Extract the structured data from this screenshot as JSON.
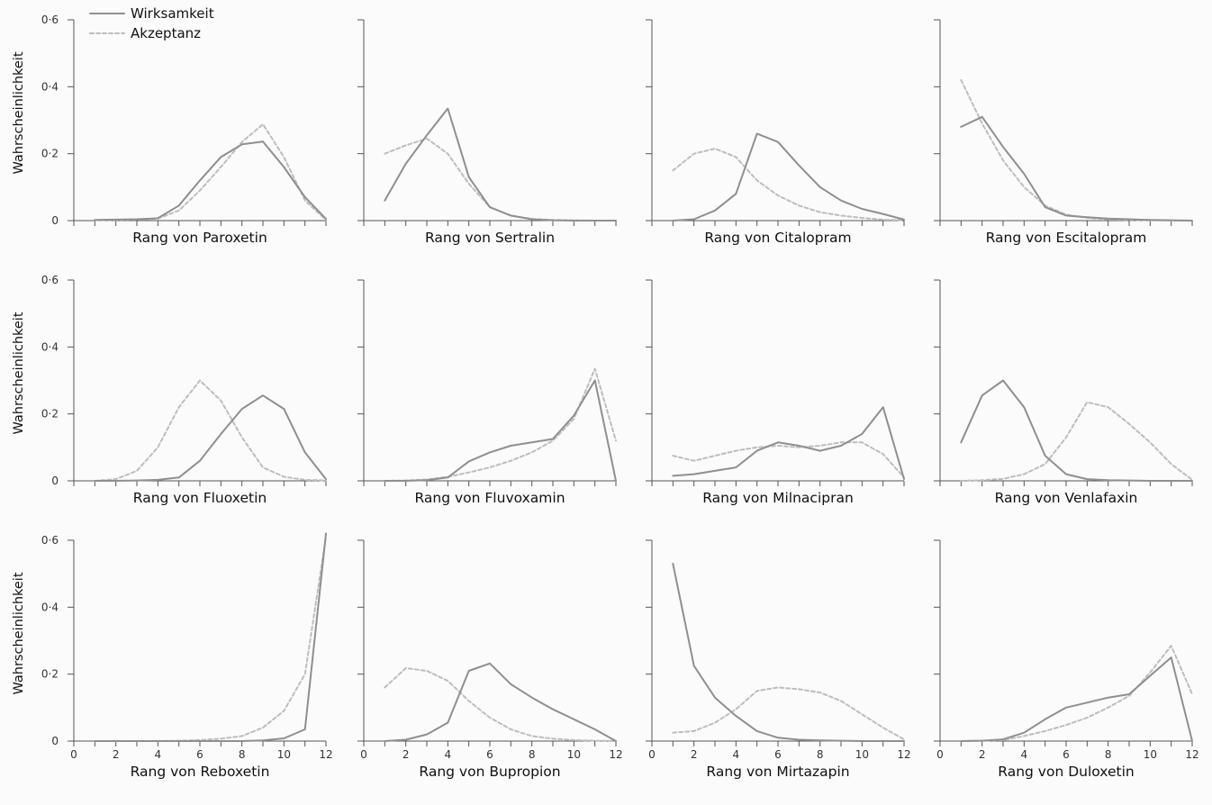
{
  "legend": {
    "items": [
      {
        "label": "Wirksamkeit",
        "style": "solid",
        "color": "#8f8f8f"
      },
      {
        "label": "Akzeptanz",
        "style": "dashed",
        "color": "#bdbdbd"
      }
    ]
  },
  "chart_data": {
    "type": "line",
    "ylabel": "Wahrscheinlichkeit",
    "xlim": [
      0,
      12
    ],
    "ylim": [
      0,
      0.6
    ],
    "xticks": [
      0,
      2,
      4,
      6,
      8,
      10,
      12
    ],
    "yticks": [
      {
        "value": 0,
        "label": "0"
      },
      {
        "value": 0.2,
        "label": "0·2"
      },
      {
        "value": 0.4,
        "label": "0·4"
      },
      {
        "value": 0.6,
        "label": "0·6"
      }
    ],
    "grid": false,
    "legend_position": "top-left",
    "series_names": [
      "Wirksamkeit",
      "Akzeptanz"
    ],
    "x": [
      1,
      2,
      3,
      4,
      5,
      6,
      7,
      8,
      9,
      10,
      11,
      12
    ],
    "panels": [
      {
        "xlabel": "Rang von Paroxetin",
        "efficacy": [
          0.002,
          0.003,
          0.004,
          0.007,
          0.045,
          0.12,
          0.19,
          0.228,
          0.236,
          0.16,
          0.07,
          0.005
        ],
        "acceptability": [
          0.001,
          0.002,
          0.003,
          0.006,
          0.03,
          0.09,
          0.16,
          0.235,
          0.288,
          0.19,
          0.06,
          0.002
        ]
      },
      {
        "xlabel": "Rang von Sertralin",
        "efficacy": [
          0.06,
          0.17,
          0.255,
          0.335,
          0.13,
          0.04,
          0.015,
          0.004,
          0.001,
          0.0,
          0.0,
          0.0
        ],
        "acceptability": [
          0.2,
          0.225,
          0.245,
          0.2,
          0.11,
          0.04,
          0.015,
          0.005,
          0.002,
          0.001,
          0.0,
          0.0
        ]
      },
      {
        "xlabel": "Rang von Citalopram",
        "efficacy": [
          0.0,
          0.004,
          0.03,
          0.08,
          0.26,
          0.235,
          0.165,
          0.1,
          0.06,
          0.035,
          0.02,
          0.003
        ],
        "acceptability": [
          0.15,
          0.2,
          0.215,
          0.19,
          0.12,
          0.075,
          0.045,
          0.025,
          0.015,
          0.008,
          0.003,
          0.001
        ]
      },
      {
        "xlabel": "Rang von Escitalopram",
        "efficacy": [
          0.28,
          0.31,
          0.22,
          0.14,
          0.04,
          0.015,
          0.01,
          0.006,
          0.004,
          0.002,
          0.001,
          0.0
        ],
        "acceptability": [
          0.42,
          0.29,
          0.18,
          0.1,
          0.045,
          0.018,
          0.008,
          0.004,
          0.002,
          0.001,
          0.0,
          0.0
        ]
      },
      {
        "xlabel": "Rang von Fluoxetin",
        "efficacy": [
          0.0,
          0.0,
          0.001,
          0.003,
          0.01,
          0.06,
          0.14,
          0.215,
          0.255,
          0.215,
          0.085,
          0.005
        ],
        "acceptability": [
          0.0,
          0.005,
          0.03,
          0.1,
          0.22,
          0.3,
          0.24,
          0.13,
          0.04,
          0.012,
          0.003,
          0.001
        ]
      },
      {
        "xlabel": "Rang von Fluvoxamin",
        "efficacy": [
          0.0,
          0.0,
          0.002,
          0.01,
          0.058,
          0.085,
          0.105,
          0.115,
          0.125,
          0.195,
          0.3,
          0.0
        ],
        "acceptability": [
          0.0,
          0.001,
          0.004,
          0.012,
          0.025,
          0.04,
          0.06,
          0.085,
          0.12,
          0.185,
          0.335,
          0.12
        ]
      },
      {
        "xlabel": "Rang von Milnacipran",
        "efficacy": [
          0.015,
          0.02,
          0.03,
          0.04,
          0.09,
          0.115,
          0.105,
          0.09,
          0.105,
          0.14,
          0.22,
          0.005
        ],
        "acceptability": [
          0.075,
          0.06,
          0.075,
          0.09,
          0.1,
          0.105,
          0.1,
          0.105,
          0.115,
          0.115,
          0.08,
          0.01
        ]
      },
      {
        "xlabel": "Rang von Venlafaxin",
        "efficacy": [
          0.115,
          0.255,
          0.3,
          0.22,
          0.075,
          0.02,
          0.005,
          0.002,
          0.001,
          0.0,
          0.0,
          0.0
        ],
        "acceptability": [
          0.0,
          0.002,
          0.006,
          0.02,
          0.05,
          0.13,
          0.235,
          0.22,
          0.17,
          0.115,
          0.05,
          0.003
        ]
      },
      {
        "xlabel": "Rang von Reboxetin",
        "efficacy": [
          0.0,
          0.0,
          0.0,
          0.0,
          0.0,
          0.0,
          0.0,
          0.0,
          0.002,
          0.008,
          0.035,
          0.62
        ],
        "acceptability": [
          0.0,
          0.0,
          0.0,
          0.0,
          0.001,
          0.003,
          0.007,
          0.015,
          0.04,
          0.09,
          0.2,
          0.61
        ]
      },
      {
        "xlabel": "Rang von Bupropion",
        "efficacy": [
          0.0,
          0.004,
          0.02,
          0.055,
          0.21,
          0.232,
          0.17,
          0.13,
          0.095,
          0.065,
          0.035,
          0.0
        ],
        "acceptability": [
          0.16,
          0.218,
          0.21,
          0.18,
          0.12,
          0.07,
          0.035,
          0.015,
          0.007,
          0.003,
          0.001,
          0.0
        ]
      },
      {
        "xlabel": "Rang von Mirtazapin",
        "efficacy": [
          0.53,
          0.225,
          0.13,
          0.075,
          0.03,
          0.01,
          0.004,
          0.002,
          0.001,
          0.0,
          0.0,
          0.0
        ],
        "acceptability": [
          0.025,
          0.03,
          0.055,
          0.095,
          0.15,
          0.16,
          0.155,
          0.145,
          0.12,
          0.08,
          0.04,
          0.005
        ]
      },
      {
        "xlabel": "Rang von Duloxetin",
        "efficacy": [
          0.0,
          0.001,
          0.005,
          0.025,
          0.065,
          0.1,
          0.115,
          0.13,
          0.14,
          0.195,
          0.25,
          0.0
        ],
        "acceptability": [
          0.0,
          0.001,
          0.003,
          0.015,
          0.03,
          0.048,
          0.07,
          0.1,
          0.135,
          0.205,
          0.285,
          0.14
        ]
      }
    ]
  }
}
